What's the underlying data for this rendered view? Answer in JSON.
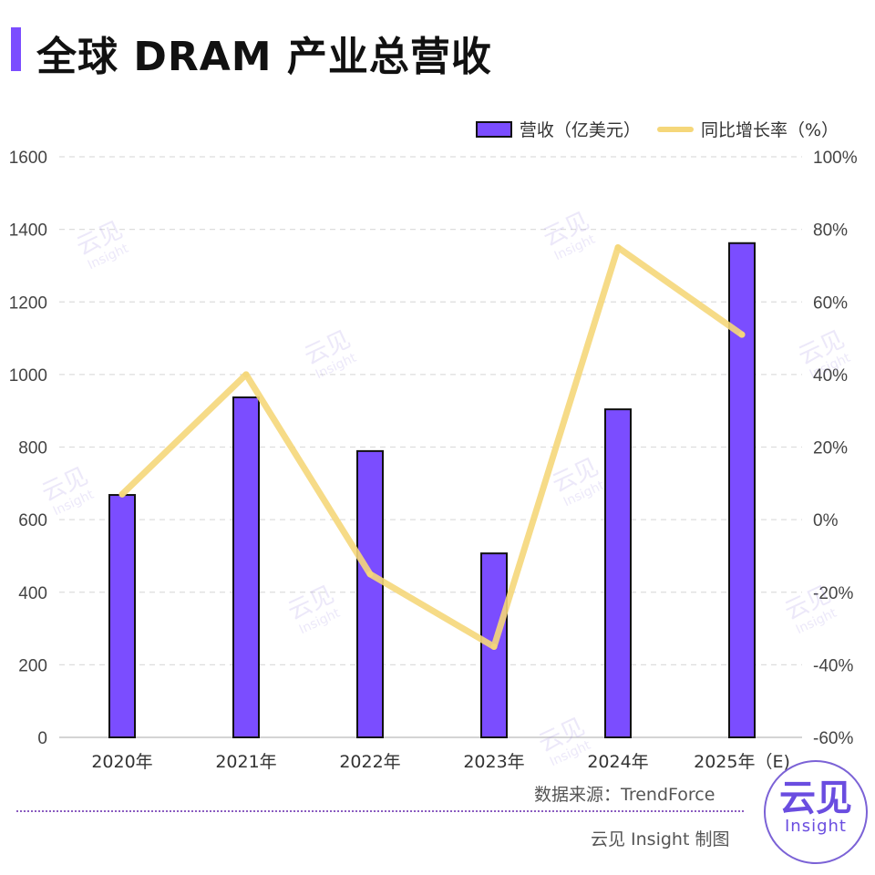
{
  "title": "全球 DRAM 产业总营收",
  "legend": {
    "bar": "营收（亿美元）",
    "line": "同比增长率（%）"
  },
  "colors": {
    "bar": "#7b4dff",
    "bar_stroke": "#111111",
    "line": "#f5d77a",
    "accent": "#7b4dff"
  },
  "chart_data": {
    "type": "bar",
    "categories": [
      "2020年",
      "2021年",
      "2022年",
      "2023年",
      "2024年",
      "2025年（E)"
    ],
    "series": [
      {
        "name": "营收（亿美元）",
        "type": "bar",
        "axis": "left",
        "values": [
          668,
          937,
          789,
          507,
          904,
          1362
        ]
      },
      {
        "name": "同比增长率（%）",
        "type": "line",
        "axis": "right",
        "values": [
          7,
          40,
          -15,
          -35,
          75,
          51
        ]
      }
    ],
    "ylim": [
      0,
      1600
    ],
    "y_ticks": [
      "0",
      "200",
      "400",
      "600",
      "800",
      "1000",
      "1200",
      "1400",
      "1600"
    ],
    "y2lim": [
      -60,
      100
    ],
    "y2_ticks": [
      "-60%",
      "-40%",
      "-20%",
      "0%",
      "20%",
      "40%",
      "60%",
      "80%",
      "100%"
    ],
    "grid": true,
    "legend_position": "top-right"
  },
  "footer": {
    "source": "数据来源：TrendForce",
    "credit": "云见 Insight 制图"
  },
  "logo": {
    "cn": "云见",
    "en": "Insight"
  },
  "watermark": {
    "cn": "云见",
    "en": "Insight"
  }
}
